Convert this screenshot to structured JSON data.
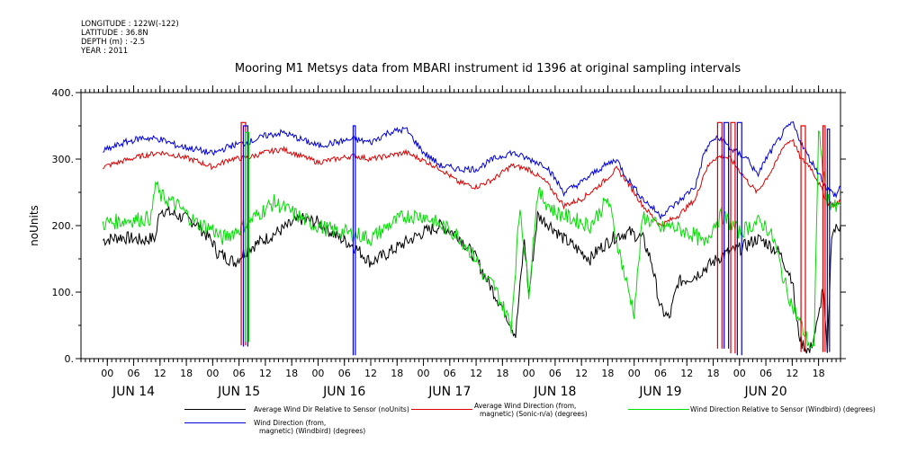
{
  "meta": {
    "longitude": "LONGITUDE : 122W(-122)",
    "latitude": "LATITUDE : 36.8N",
    "depth": "DEPTH (m) : -2.5",
    "year": "YEAR : 2011"
  },
  "chart_data": {
    "type": "line",
    "title": "Mooring M1 Metsys data from MBARI instrument id 1396 at original sampling intervals",
    "ylabel": "noUnits",
    "ylim": [
      0,
      400
    ],
    "yticks": [
      0,
      100,
      200,
      300,
      400
    ],
    "ytick_labels": [
      "0.",
      "100.",
      "200.",
      "300.",
      "400."
    ],
    "xlim_hours": [
      -6,
      167
    ],
    "xtick_hour_labels": [
      "00",
      "06",
      "12",
      "18"
    ],
    "day_labels": [
      "JUN 14",
      "JUN 15",
      "JUN 16",
      "JUN 17",
      "JUN 18",
      "JUN 19",
      "JUN 20"
    ],
    "grid": false,
    "legend_position": "bottom",
    "series": [
      {
        "name": "Average Wind Dir Relative to Sensor (noUnits)",
        "color": "#000000",
        "points": [
          [
            -1,
            178
          ],
          [
            3,
            183
          ],
          [
            8,
            178
          ],
          [
            11,
            182
          ],
          [
            12,
            225
          ],
          [
            16,
            215
          ],
          [
            20,
            205
          ],
          [
            24,
            175
          ],
          [
            25,
            160
          ],
          [
            29,
            145
          ],
          [
            32,
            165
          ],
          [
            36,
            180
          ],
          [
            40,
            195
          ],
          [
            44,
            210
          ],
          [
            48,
            205
          ],
          [
            52,
            185
          ],
          [
            56,
            170
          ],
          [
            60,
            145
          ],
          [
            63,
            155
          ],
          [
            68,
            175
          ],
          [
            72,
            190
          ],
          [
            76,
            200
          ],
          [
            80,
            185
          ],
          [
            84,
            150
          ],
          [
            88,
            100
          ],
          [
            91,
            65
          ],
          [
            92,
            50
          ],
          [
            93,
            35
          ],
          [
            95,
            180
          ],
          [
            96,
            95
          ],
          [
            98,
            215
          ],
          [
            101,
            200
          ],
          [
            104,
            180
          ],
          [
            107,
            165
          ],
          [
            110,
            150
          ],
          [
            112,
            165
          ],
          [
            116,
            185
          ],
          [
            119,
            190
          ],
          [
            122,
            180
          ],
          [
            124,
            145
          ],
          [
            126,
            75
          ],
          [
            128,
            60
          ],
          [
            130,
            115
          ],
          [
            132,
            120
          ],
          [
            134,
            125
          ],
          [
            136,
            135
          ],
          [
            140,
            155
          ],
          [
            144,
            165
          ],
          [
            148,
            180
          ],
          [
            150,
            175
          ],
          [
            153,
            160
          ],
          [
            156,
            120
          ],
          [
            157,
            55
          ],
          [
            158,
            25
          ],
          [
            160,
            10
          ],
          [
            162,
            60
          ],
          [
            163,
            110
          ],
          [
            164,
            5
          ],
          [
            165,
            190
          ],
          [
            167,
            200
          ]
        ]
      },
      {
        "name": "Average Wind Direction (from, magnetic) (Sonic-n/a) (degrees)",
        "color": "#dd0000",
        "points": [
          [
            -1,
            288
          ],
          [
            4,
            298
          ],
          [
            8,
            305
          ],
          [
            12,
            310
          ],
          [
            16,
            305
          ],
          [
            20,
            298
          ],
          [
            24,
            288
          ],
          [
            28,
            300
          ],
          [
            32,
            302
          ],
          [
            36,
            310
          ],
          [
            40,
            315
          ],
          [
            44,
            305
          ],
          [
            48,
            295
          ],
          [
            52,
            300
          ],
          [
            56,
            305
          ],
          [
            60,
            300
          ],
          [
            64,
            305
          ],
          [
            68,
            310
          ],
          [
            72,
            298
          ],
          [
            76,
            285
          ],
          [
            80,
            265
          ],
          [
            84,
            258
          ],
          [
            88,
            270
          ],
          [
            92,
            290
          ],
          [
            96,
            285
          ],
          [
            100,
            265
          ],
          [
            104,
            230
          ],
          [
            108,
            240
          ],
          [
            112,
            260
          ],
          [
            116,
            285
          ],
          [
            118,
            270
          ],
          [
            122,
            230
          ],
          [
            126,
            200
          ],
          [
            130,
            215
          ],
          [
            134,
            240
          ],
          [
            136,
            280
          ],
          [
            138,
            300
          ],
          [
            140,
            305
          ],
          [
            142,
            300
          ],
          [
            146,
            265
          ],
          [
            148,
            250
          ],
          [
            150,
            270
          ],
          [
            152,
            290
          ],
          [
            154,
            320
          ],
          [
            156,
            330
          ],
          [
            158,
            300
          ],
          [
            160,
            290
          ],
          [
            162,
            265
          ],
          [
            164,
            235
          ],
          [
            166,
            230
          ],
          [
            167,
            240
          ]
        ]
      },
      {
        "name": "Wind Direction Relative to Sensor (Windbird) (degrees)",
        "color": "#00dd00",
        "points": [
          [
            -1,
            203
          ],
          [
            4,
            208
          ],
          [
            8,
            210
          ],
          [
            10,
            212
          ],
          [
            11,
            265
          ],
          [
            12,
            245
          ],
          [
            16,
            230
          ],
          [
            20,
            205
          ],
          [
            24,
            195
          ],
          [
            26,
            180
          ],
          [
            30,
            195
          ],
          [
            34,
            215
          ],
          [
            38,
            235
          ],
          [
            42,
            220
          ],
          [
            46,
            205
          ],
          [
            50,
            195
          ],
          [
            54,
            190
          ],
          [
            58,
            185
          ],
          [
            60,
            180
          ],
          [
            64,
            200
          ],
          [
            68,
            215
          ],
          [
            72,
            215
          ],
          [
            76,
            200
          ],
          [
            80,
            185
          ],
          [
            84,
            150
          ],
          [
            86,
            120
          ],
          [
            88,
            110
          ],
          [
            90,
            80
          ],
          [
            92,
            50
          ],
          [
            94,
            230
          ],
          [
            96,
            100
          ],
          [
            98,
            250
          ],
          [
            102,
            220
          ],
          [
            106,
            210
          ],
          [
            110,
            200
          ],
          [
            114,
            240
          ],
          [
            116,
            180
          ],
          [
            118,
            120
          ],
          [
            120,
            70
          ],
          [
            122,
            215
          ],
          [
            124,
            205
          ],
          [
            126,
            195
          ],
          [
            128,
            200
          ],
          [
            130,
            195
          ],
          [
            134,
            185
          ],
          [
            136,
            170
          ],
          [
            138,
            200
          ],
          [
            140,
            215
          ],
          [
            144,
            190
          ],
          [
            148,
            205
          ],
          [
            150,
            200
          ],
          [
            152,
            175
          ],
          [
            154,
            120
          ],
          [
            156,
            80
          ],
          [
            158,
            50
          ],
          [
            160,
            20
          ],
          [
            161,
            15
          ],
          [
            162,
            350
          ],
          [
            163,
            280
          ],
          [
            164,
            240
          ],
          [
            166,
            225
          ],
          [
            167,
            230
          ]
        ]
      },
      {
        "name": "Wind Direction (from, magnetic) (Windbird) (degrees)",
        "color": "#0000dd",
        "points": [
          [
            -1,
            312
          ],
          [
            4,
            325
          ],
          [
            8,
            332
          ],
          [
            12,
            330
          ],
          [
            16,
            320
          ],
          [
            20,
            315
          ],
          [
            24,
            308
          ],
          [
            28,
            320
          ],
          [
            32,
            325
          ],
          [
            36,
            335
          ],
          [
            40,
            340
          ],
          [
            44,
            330
          ],
          [
            48,
            320
          ],
          [
            52,
            325
          ],
          [
            56,
            330
          ],
          [
            60,
            325
          ],
          [
            64,
            340
          ],
          [
            68,
            345
          ],
          [
            72,
            310
          ],
          [
            76,
            290
          ],
          [
            80,
            285
          ],
          [
            84,
            285
          ],
          [
            88,
            300
          ],
          [
            92,
            310
          ],
          [
            96,
            300
          ],
          [
            100,
            290
          ],
          [
            104,
            250
          ],
          [
            108,
            265
          ],
          [
            112,
            285
          ],
          [
            116,
            300
          ],
          [
            118,
            275
          ],
          [
            122,
            240
          ],
          [
            126,
            215
          ],
          [
            130,
            235
          ],
          [
            134,
            260
          ],
          [
            136,
            310
          ],
          [
            138,
            330
          ],
          [
            140,
            330
          ],
          [
            142,
            315
          ],
          [
            146,
            300
          ],
          [
            148,
            275
          ],
          [
            150,
            300
          ],
          [
            152,
            320
          ],
          [
            154,
            340
          ],
          [
            156,
            355
          ],
          [
            158,
            325
          ],
          [
            160,
            300
          ],
          [
            162,
            280
          ],
          [
            164,
            255
          ],
          [
            166,
            245
          ],
          [
            167,
            260
          ]
        ]
      }
    ],
    "spikes": [
      {
        "hours": [
          30.5,
          31.5
        ],
        "values": [
          20,
          355
        ],
        "color": "#dd0000"
      },
      {
        "hours": [
          31,
          32
        ],
        "values": [
          18,
          350
        ],
        "color": "#0000dd"
      },
      {
        "hours": [
          31.5,
          32.2
        ],
        "values": [
          25,
          340
        ],
        "color": "#00dd00"
      },
      {
        "hours": [
          56,
          56.5
        ],
        "values": [
          5,
          350
        ],
        "color": "#0000dd"
      },
      {
        "hours": [
          139,
          140
        ],
        "values": [
          15,
          355
        ],
        "color": "#dd0000"
      },
      {
        "hours": [
          140.5,
          141.5
        ],
        "values": [
          15,
          355
        ],
        "color": "#0000dd"
      },
      {
        "hours": [
          142,
          143
        ],
        "values": [
          8,
          355
        ],
        "color": "#dd0000"
      },
      {
        "hours": [
          143.5,
          144.5
        ],
        "values": [
          5,
          355
        ],
        "color": "#0000dd"
      },
      {
        "hours": [
          158,
          159
        ],
        "values": [
          10,
          350
        ],
        "color": "#dd0000"
      },
      {
        "hours": [
          163,
          163.5
        ],
        "values": [
          10,
          350
        ],
        "color": "#dd0000"
      },
      {
        "hours": [
          164,
          164.5
        ],
        "values": [
          10,
          345
        ],
        "color": "#0000dd"
      }
    ]
  },
  "legend": {
    "items": [
      {
        "label": "Average Wind Dir Relative to Sensor (noUnits)",
        "color": "#000000"
      },
      {
        "label": "Average Wind Direction (from,\nmagnetic) (Sonic-n/a) (degrees)",
        "color": "#dd0000"
      },
      {
        "label": "Wind Direction Relative to Sensor (Windbird) (degrees)",
        "color": "#00dd00"
      },
      {
        "label": "Wind Direction (from,\nmagnetic) (Windbird) (degrees)",
        "color": "#0000dd"
      }
    ]
  }
}
